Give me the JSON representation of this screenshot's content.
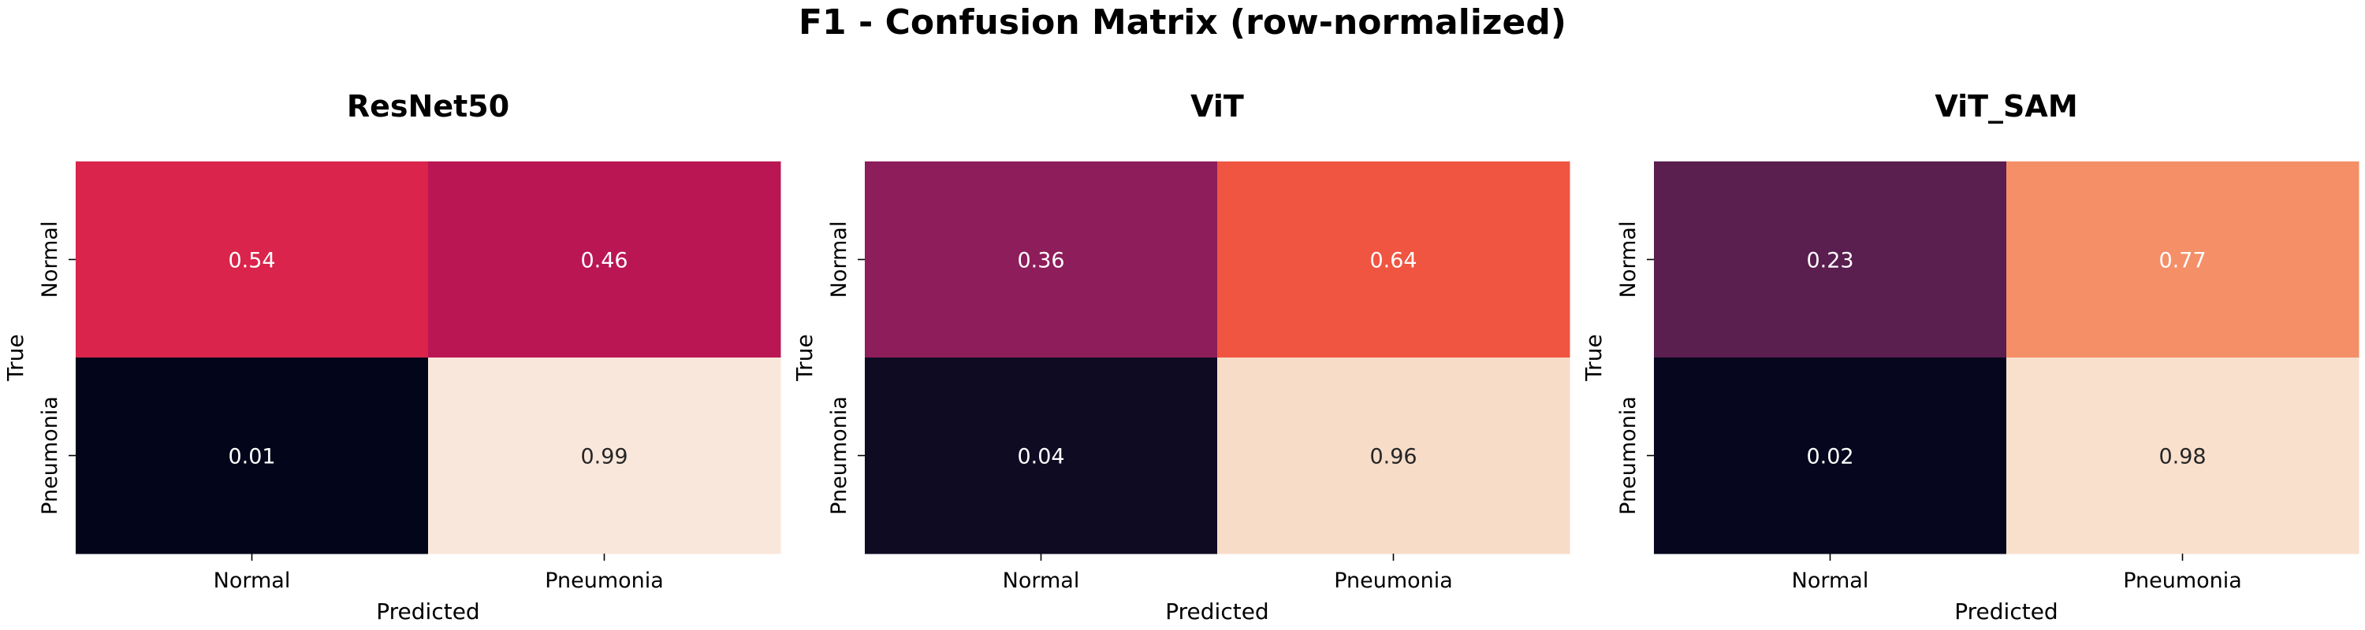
{
  "figure": {
    "title": "F1 - Confusion Matrix (row-normalized)"
  },
  "chart_data": [
    {
      "type": "heatmap",
      "title": "ResNet50",
      "xlabel": "Predicted",
      "ylabel": "True",
      "x_categories": [
        "Normal",
        "Pneumonia"
      ],
      "y_categories": [
        "Normal",
        "Pneumonia"
      ],
      "values": [
        [
          0.54,
          0.46
        ],
        [
          0.01,
          0.99
        ]
      ],
      "cell_colors": [
        [
          "#da244b",
          "#bb1654"
        ],
        [
          "#03051a",
          "#fae7db"
        ]
      ],
      "text_colors": [
        [
          "#ffffff",
          "#ffffff"
        ],
        [
          "#ffffff",
          "#262626"
        ]
      ]
    },
    {
      "type": "heatmap",
      "title": "ViT",
      "xlabel": "Predicted",
      "ylabel": "True",
      "x_categories": [
        "Normal",
        "Pneumonia"
      ],
      "y_categories": [
        "Normal",
        "Pneumonia"
      ],
      "values": [
        [
          0.36,
          0.64
        ],
        [
          0.04,
          0.96
        ]
      ],
      "cell_colors": [
        [
          "#8e1d5b",
          "#ef5541"
        ],
        [
          "#0f0b23",
          "#f7dcc8"
        ]
      ],
      "text_colors": [
        [
          "#ffffff",
          "#ffffff"
        ],
        [
          "#ffffff",
          "#262626"
        ]
      ]
    },
    {
      "type": "heatmap",
      "title": "ViT_SAM",
      "xlabel": "Predicted",
      "ylabel": "True",
      "x_categories": [
        "Normal",
        "Pneumonia"
      ],
      "y_categories": [
        "Normal",
        "Pneumonia"
      ],
      "values": [
        [
          0.23,
          0.77
        ],
        [
          0.02,
          0.98
        ]
      ],
      "cell_colors": [
        [
          "#5a1e4f",
          "#f48f68"
        ],
        [
          "#06071e",
          "#f9e0cd"
        ]
      ],
      "text_colors": [
        [
          "#ffffff",
          "#ffffff"
        ],
        [
          "#ffffff",
          "#262626"
        ]
      ]
    }
  ]
}
